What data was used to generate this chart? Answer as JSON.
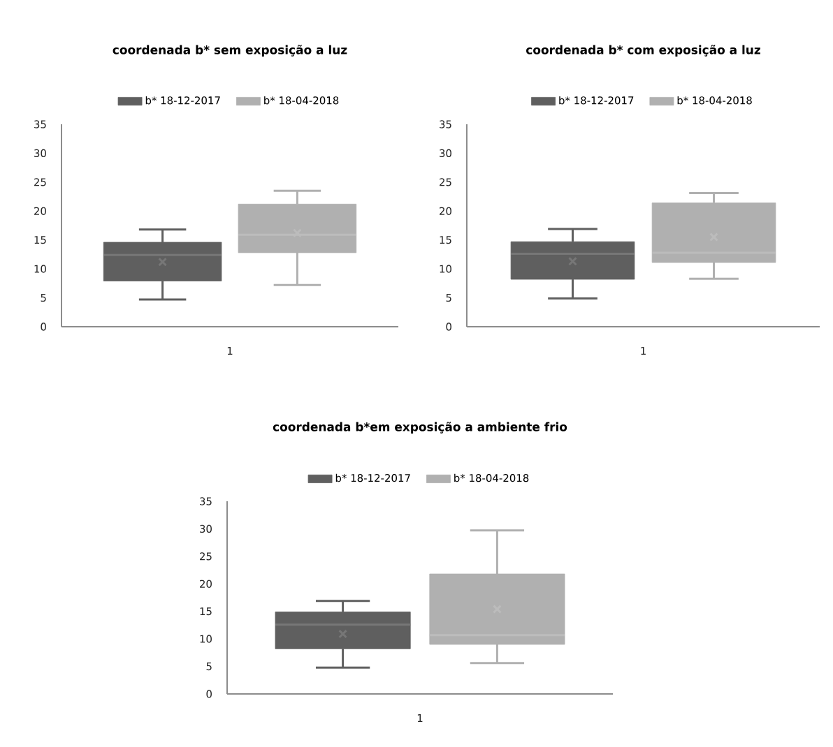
{
  "chart_data": [
    {
      "type": "box",
      "title": "coordenada b* sem exposição a luz",
      "categories": [
        "1"
      ],
      "legend": "top",
      "ylim": [
        0,
        35
      ],
      "yticks": [
        0,
        5,
        10,
        15,
        20,
        25,
        30,
        35
      ],
      "series": [
        {
          "name": "b* 18-12-2017",
          "color": "#5f5f5f",
          "boxes": [
            {
              "low": 4.7,
              "q1": 7.9,
              "median": 12.4,
              "q3": 14.6,
              "high": 16.8,
              "mean": 11.2
            }
          ]
        },
        {
          "name": "b* 18-04-2018",
          "color": "#b0b0b0",
          "boxes": [
            {
              "low": 7.2,
              "q1": 12.8,
              "median": 15.9,
              "q3": 21.2,
              "high": 23.5,
              "mean": 16.2
            }
          ]
        }
      ]
    },
    {
      "type": "box",
      "title": "coordenada b* com exposição a luz",
      "categories": [
        "1"
      ],
      "legend": "top",
      "ylim": [
        0,
        35
      ],
      "yticks": [
        0,
        5,
        10,
        15,
        20,
        25,
        30,
        35
      ],
      "series": [
        {
          "name": "b* 18-12-2017",
          "color": "#5f5f5f",
          "boxes": [
            {
              "low": 4.9,
              "q1": 8.2,
              "median": 12.6,
              "q3": 14.7,
              "high": 16.9,
              "mean": 11.3
            }
          ]
        },
        {
          "name": "b* 18-04-2018",
          "color": "#b0b0b0",
          "boxes": [
            {
              "low": 8.3,
              "q1": 11.1,
              "median": 12.8,
              "q3": 21.4,
              "high": 23.1,
              "mean": 15.5
            }
          ]
        }
      ]
    },
    {
      "type": "box",
      "title": "coordenada b*em exposição a ambiente frio",
      "categories": [
        "1"
      ],
      "legend": "top",
      "ylim": [
        0,
        35
      ],
      "yticks": [
        0,
        5,
        10,
        15,
        20,
        25,
        30,
        35
      ],
      "series": [
        {
          "name": "b* 18-12-2017",
          "color": "#5f5f5f",
          "boxes": [
            {
              "low": 4.8,
              "q1": 8.2,
              "median": 12.6,
              "q3": 14.9,
              "high": 16.9,
              "mean": 10.9
            }
          ]
        },
        {
          "name": "b* 18-04-2018",
          "color": "#b0b0b0",
          "boxes": [
            {
              "low": 5.6,
              "q1": 9.0,
              "median": 10.7,
              "q3": 21.8,
              "high": 29.7,
              "mean": 15.4
            }
          ]
        }
      ]
    }
  ]
}
